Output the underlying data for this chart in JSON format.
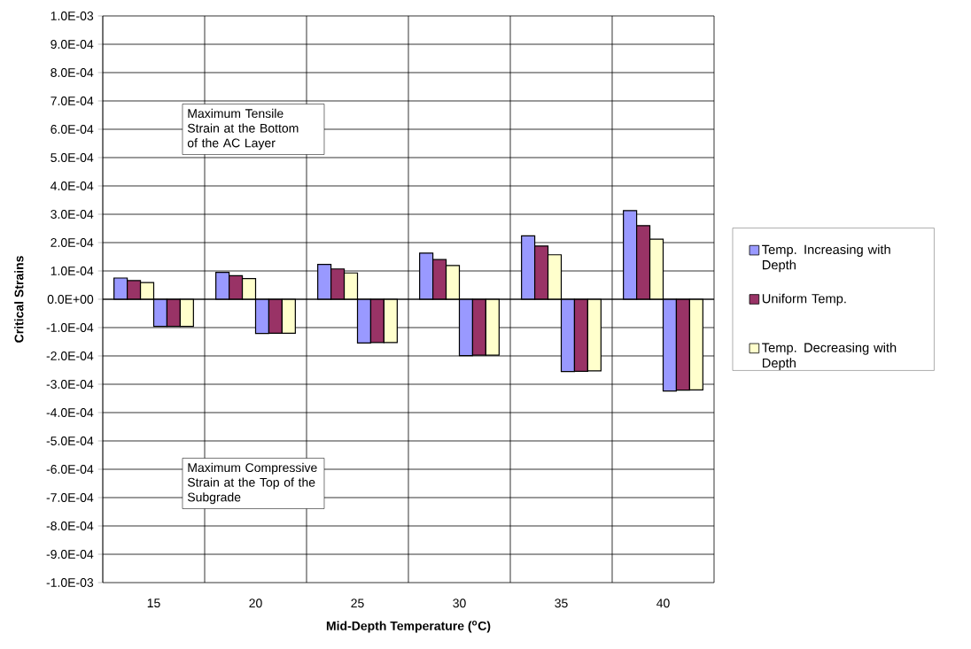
{
  "chart_data": {
    "type": "bar",
    "xlabel": "Mid-Depth Temperature ($^{o}$C)",
    "ylabel": "Critical Strains",
    "categories": [
      "15",
      "20",
      "25",
      "30",
      "35",
      "40"
    ],
    "series": [
      {
        "name": "Temp. Increasing with Depth",
        "color": "#9999ff",
        "values": [
          7.5e-05,
          9.5e-05,
          0.000123,
          0.000163,
          0.000224,
          0.000313
        ]
      },
      {
        "name": "Uniform Temp.",
        "color": "#993366",
        "values": [
          6.6e-05,
          8.3e-05,
          0.000107,
          0.00014,
          0.000188,
          0.00026
        ]
      },
      {
        "name": "Temp. Decreasing with Depth",
        "color": "#ffffcc",
        "values": [
          5.9e-05,
          7.3e-05,
          9.3e-05,
          0.000119,
          0.000157,
          0.000212
        ]
      },
      {
        "color": "#9999ff",
        "values": [
          -9.6e-05,
          -0.000121,
          -0.000154,
          -0.000199,
          -0.000255,
          -0.000324
        ]
      },
      {
        "color": "#993366",
        "values": [
          -9.6e-05,
          -0.00012,
          -0.000153,
          -0.000197,
          -0.000254,
          -0.000321
        ]
      },
      {
        "color": "#ffffcc",
        "values": [
          -9.6e-05,
          -0.00012,
          -0.000153,
          -0.000197,
          -0.000253,
          -0.00032
        ]
      }
    ],
    "ylim": [
      -0.001,
      0.001
    ],
    "yticks": [
      {
        "value": -0.001,
        "label": "-1.0E-03"
      },
      {
        "value": -0.0009,
        "label": "-9.0E-04"
      },
      {
        "value": -0.0008,
        "label": "-8.0E-04"
      },
      {
        "value": -0.0007,
        "label": "-7.0E-04"
      },
      {
        "value": -0.0006,
        "label": "-6.0E-04"
      },
      {
        "value": -0.0005,
        "label": "-5.0E-04"
      },
      {
        "value": -0.0004,
        "label": "-4.0E-04"
      },
      {
        "value": -0.0003,
        "label": "-3.0E-04"
      },
      {
        "value": -0.0002,
        "label": "-2.0E-04"
      },
      {
        "value": -0.0001,
        "label": "-1.0E-04"
      },
      {
        "value": 0,
        "label": "0.0E+00"
      },
      {
        "value": 0.0001,
        "label": "1.0E-04"
      },
      {
        "value": 0.0002,
        "label": "2.0E-04"
      },
      {
        "value": 0.0003,
        "label": "3.0E-04"
      },
      {
        "value": 0.0004,
        "label": "4.0E-04"
      },
      {
        "value": 0.0005,
        "label": "5.0E-04"
      },
      {
        "value": 0.0006,
        "label": "6.0E-04"
      },
      {
        "value": 0.0007,
        "label": "7.0E-04"
      },
      {
        "value": 0.0008,
        "label": "8.0E-04"
      },
      {
        "value": 0.0009,
        "label": "9.0E-04"
      },
      {
        "value": 0.001,
        "label": "1.0E-03"
      }
    ],
    "grid": true,
    "legend": "right",
    "annotations": [
      "Maximum Tensile Strain at the Bottom of the AC Layer",
      "Maximum Compressive Strain at the Top of the Subgrade"
    ]
  }
}
